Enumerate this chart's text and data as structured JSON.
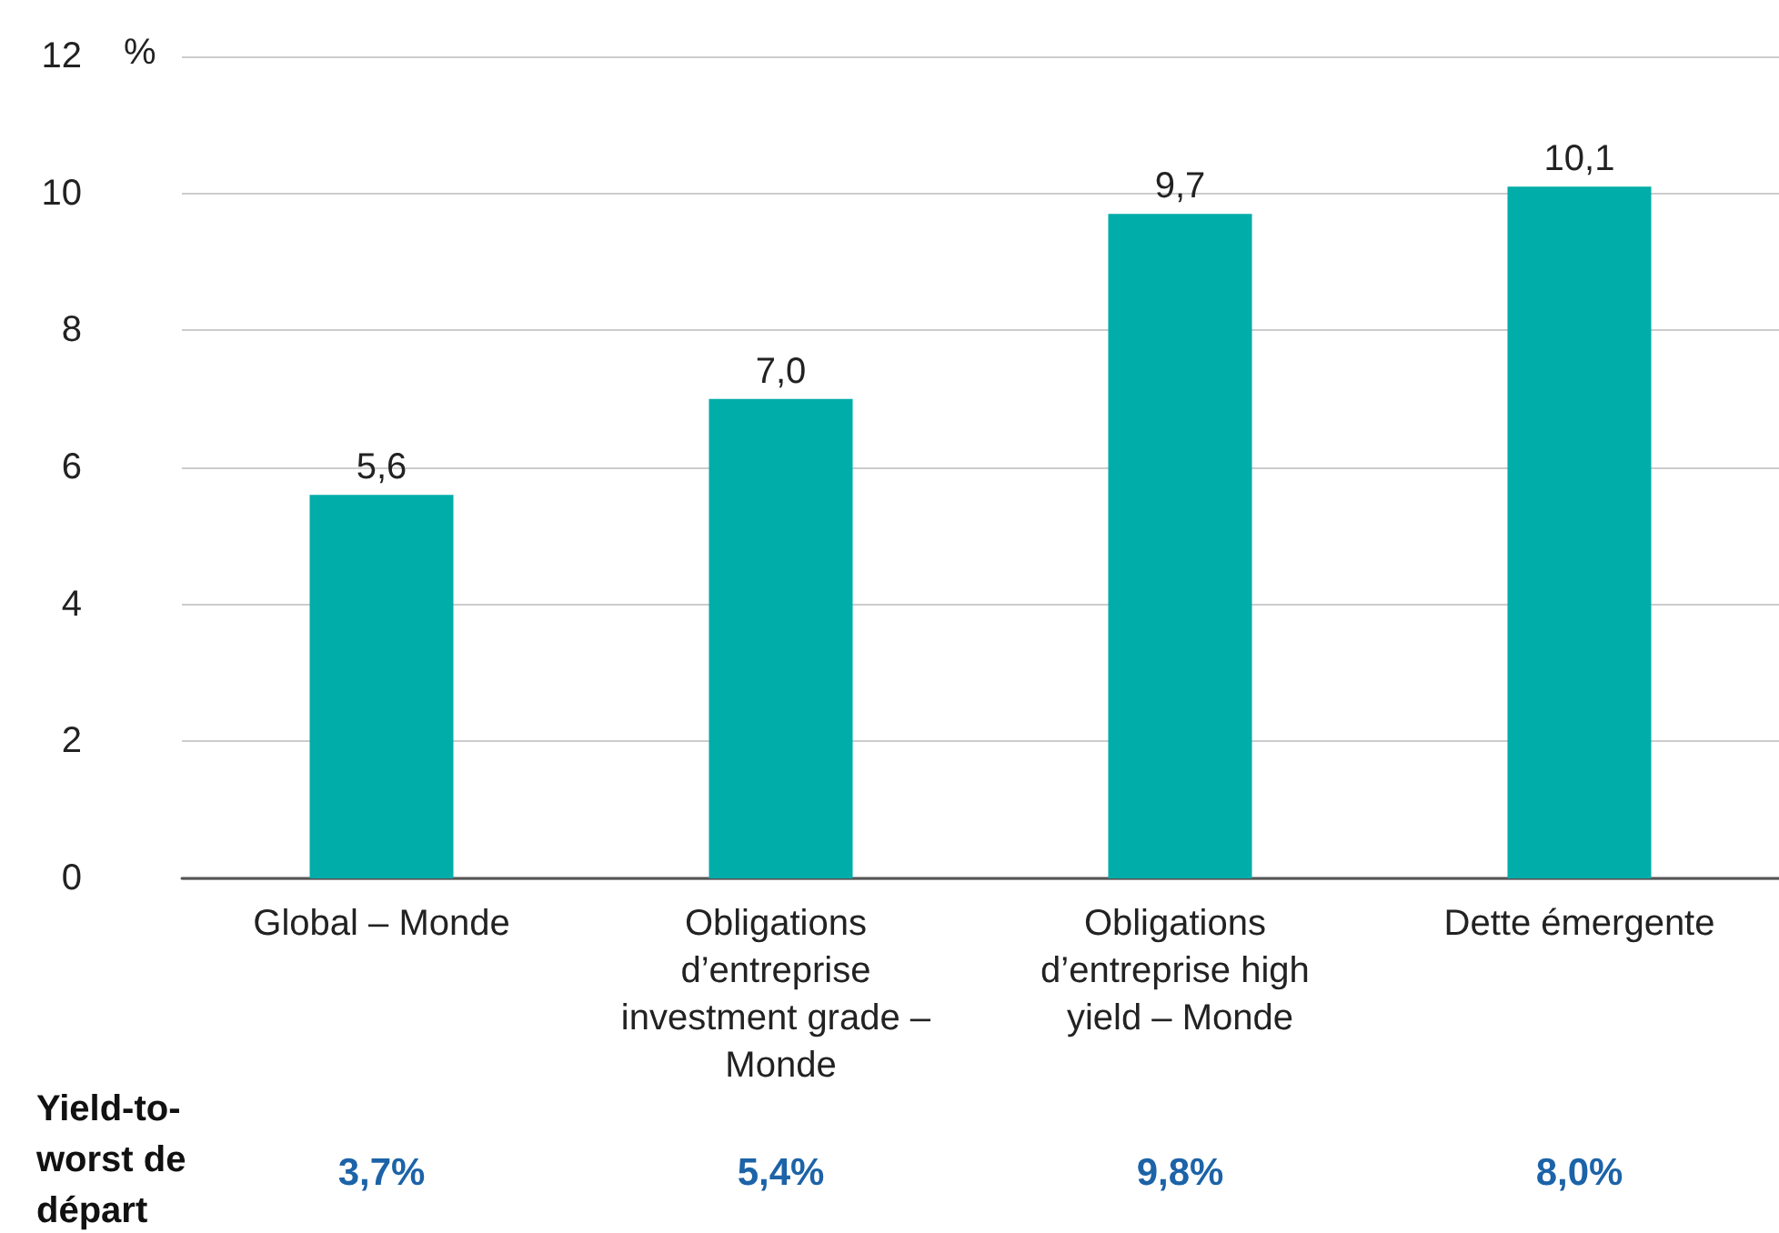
{
  "chart_data": {
    "type": "bar",
    "ylabel": "%",
    "categories": [
      "Global – Monde",
      "Obligations d’entreprise investment grade – Monde",
      "Obligations d’entreprise high yield – Monde",
      "Dette émergente"
    ],
    "values": [
      5.6,
      7.0,
      9.7,
      10.1
    ],
    "color": "#00ada8",
    "value_labels": [
      "5,6",
      "7,0",
      "9,7",
      "10,1"
    ],
    "ylim": [
      0,
      12
    ],
    "yticks": [
      0,
      2,
      4,
      6,
      8,
      10,
      12
    ],
    "grid": "y",
    "annotations": [
      "Yield-to-worst de départ",
      "3,7%",
      "5,4%",
      "9,8%",
      "8,0%"
    ]
  }
}
